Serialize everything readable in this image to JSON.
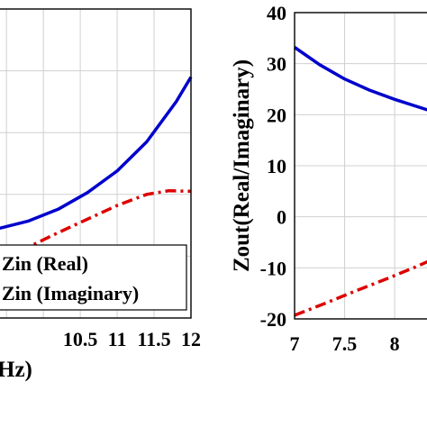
{
  "chart_data": [
    {
      "type": "line",
      "title": "",
      "xlabel": "Hz)",
      "ylabel": "",
      "xlim": [
        9.4,
        12
      ],
      "ylim": [
        0,
        5
      ],
      "grid": true,
      "xticks": [
        10.5,
        11,
        11.5,
        12
      ],
      "xtick_labels": [
        "10.5",
        "11",
        "11.5",
        "12"
      ],
      "legend_position": "bottom-right",
      "series": [
        {
          "name": "Zin (Real)",
          "color": "#0000cc",
          "style": "solid",
          "x": [
            9.4,
            9.8,
            10.2,
            10.6,
            11.0,
            11.4,
            11.8,
            12.0
          ],
          "y": [
            1.45,
            1.57,
            1.76,
            2.03,
            2.38,
            2.85,
            3.5,
            3.9
          ]
        },
        {
          "name": "Zin (Imaginary)",
          "color": "#dd0000",
          "style": "dash-dot",
          "x": [
            9.4,
            9.8,
            10.2,
            10.6,
            11.0,
            11.4,
            11.7,
            12.0
          ],
          "y": [
            0.95,
            1.15,
            1.38,
            1.6,
            1.82,
            2.0,
            2.06,
            2.05
          ]
        }
      ]
    },
    {
      "type": "line",
      "title": "",
      "xlabel": "",
      "ylabel": "Zout(Real/Imaginary)",
      "xlim": [
        7,
        8.35
      ],
      "ylim": [
        -20,
        40
      ],
      "grid": true,
      "xticks": [
        7,
        7.5,
        8
      ],
      "xtick_labels": [
        "7",
        "7.5",
        "8"
      ],
      "yticks": [
        -20,
        -10,
        0,
        10,
        20,
        30,
        40
      ],
      "ytick_labels": [
        "-20",
        "-10",
        "0",
        "10",
        "20",
        "30",
        "40"
      ],
      "series": [
        {
          "name": "",
          "color": "#0000cc",
          "style": "solid",
          "x": [
            7.0,
            7.25,
            7.5,
            7.75,
            8.0,
            8.35
          ],
          "y": [
            33.2,
            29.8,
            27.0,
            24.8,
            23.0,
            20.8
          ]
        },
        {
          "name": "",
          "color": "#dd0000",
          "style": "dash-dot",
          "x": [
            7.0,
            7.3,
            7.6,
            7.9,
            8.2,
            8.35
          ],
          "y": [
            -19.3,
            -17.0,
            -14.6,
            -12.3,
            -9.9,
            -8.6
          ]
        }
      ]
    }
  ]
}
